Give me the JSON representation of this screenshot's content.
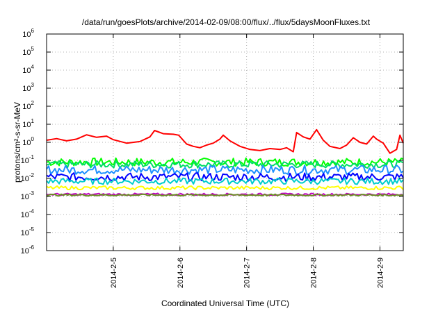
{
  "chart_data": {
    "type": "line",
    "title": "/data/run/goesPlots/archive/2014-02-09/08:00/flux/../flux/5daysMoonFluxes.txt",
    "xlabel": "Coordinated Universal Time (UTC)",
    "ylabel": "protons/cm²-s-sr-MeV",
    "yscale": "log",
    "ylim_exp": [
      -6,
      6
    ],
    "y_ticks": [
      {
        "base": "10",
        "exp": "-6"
      },
      {
        "base": "10",
        "exp": "-5"
      },
      {
        "base": "10",
        "exp": "-4"
      },
      {
        "base": "10",
        "exp": "-3"
      },
      {
        "base": "10",
        "exp": "-2"
      },
      {
        "base": "10",
        "exp": "-1"
      },
      {
        "base": "10",
        "exp": "0"
      },
      {
        "base": "10",
        "exp": "1"
      },
      {
        "base": "10",
        "exp": "2"
      },
      {
        "base": "10",
        "exp": "3"
      },
      {
        "base": "10",
        "exp": "4"
      },
      {
        "base": "10",
        "exp": "5"
      },
      {
        "base": "10",
        "exp": "6"
      }
    ],
    "x_ticks": [
      "2014-2-5",
      "2014-2-6",
      "2014-2-7",
      "2014-2-8",
      "2014-2-9"
    ],
    "xlim_days": [
      4.0,
      9.35
    ],
    "grid": true,
    "series": [
      {
        "color": "#ff0000",
        "days": [
          4.0,
          4.15,
          4.3,
          4.45,
          4.6,
          4.75,
          4.9,
          5.0,
          5.2,
          5.4,
          5.55,
          5.62,
          5.75,
          5.9,
          5.98,
          6.1,
          6.2,
          6.3,
          6.4,
          6.5,
          6.6,
          6.65,
          6.75,
          6.9,
          7.05,
          7.2,
          7.35,
          7.5,
          7.6,
          7.7,
          7.75,
          7.85,
          7.95,
          8.05,
          8.15,
          8.25,
          8.4,
          8.5,
          8.6,
          8.7,
          8.8,
          8.9,
          8.95,
          9.05,
          9.15,
          9.25,
          9.3,
          9.35
        ],
        "values": [
          1.3,
          1.6,
          1.2,
          1.5,
          2.6,
          1.9,
          2.2,
          1.4,
          0.9,
          1.1,
          2.0,
          4.5,
          3.0,
          2.8,
          2.5,
          0.8,
          0.6,
          0.5,
          0.7,
          0.9,
          1.5,
          2.5,
          1.2,
          0.6,
          0.4,
          0.35,
          0.45,
          0.4,
          0.5,
          0.3,
          3.5,
          2.0,
          1.5,
          5.0,
          1.3,
          0.6,
          0.45,
          0.7,
          1.8,
          1.0,
          0.8,
          2.2,
          1.5,
          0.9,
          0.25,
          0.4,
          2.5,
          0.9
        ]
      },
      {
        "color": "#00ff00",
        "center": 0.08,
        "spread": 0.45
      },
      {
        "color": "#00dd66",
        "center": 0.06,
        "spread": 0.4
      },
      {
        "color": "#1e90ff",
        "center": 0.03,
        "spread": 0.5
      },
      {
        "color": "#0000ff",
        "center": 0.012,
        "spread": 0.45
      },
      {
        "color": "#00cccc",
        "center": 0.007,
        "spread": 0.35
      },
      {
        "color": "#ffff00",
        "center": 0.003,
        "spread": 0.2
      },
      {
        "color": "#c000c0",
        "center": 0.0013,
        "spread": 0.12
      },
      {
        "color": "#6b8e23",
        "center": 0.0012,
        "spread": 0.1
      }
    ]
  }
}
